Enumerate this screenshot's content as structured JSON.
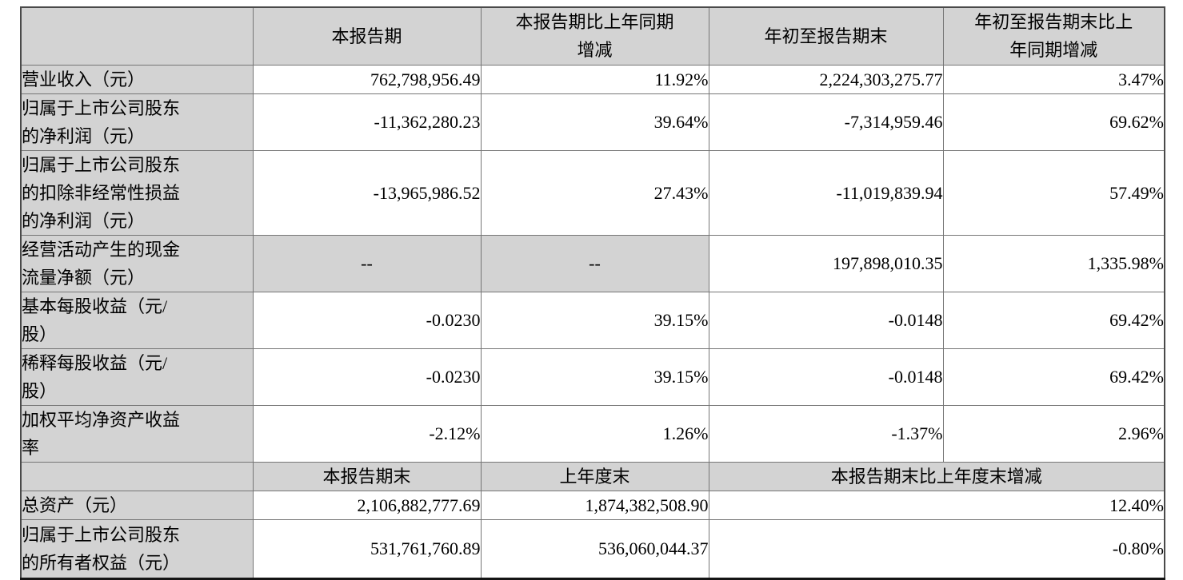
{
  "table": {
    "header1": {
      "corner": "",
      "current_period": "本报告期",
      "yoy_change": "本报告期比上年同期\n增减",
      "ytd": "年初至报告期末",
      "ytd_yoy_change": "年初至报告期末比上\n年同期增减"
    },
    "rows": [
      {
        "label": "营业收入（元）",
        "current": "762,798,956.49",
        "yoy": "11.92%",
        "ytd": "2,224,303,275.77",
        "ytd_yoy": "3.47%"
      },
      {
        "label": "归属于上市公司股东\n的净利润（元）",
        "current": "-11,362,280.23",
        "yoy": "39.64%",
        "ytd": "-7,314,959.46",
        "ytd_yoy": "69.62%"
      },
      {
        "label": "归属于上市公司股东\n的扣除非经常性损益\n的净利润（元）",
        "current": "-13,965,986.52",
        "yoy": "27.43%",
        "ytd": "-11,019,839.94",
        "ytd_yoy": "57.49%"
      },
      {
        "label": "经营活动产生的现金\n流量净额（元）",
        "current": "--",
        "yoy": "--",
        "ytd": "197,898,010.35",
        "ytd_yoy": "1,335.98%"
      },
      {
        "label": "基本每股收益（元/\n股）",
        "current": "-0.0230",
        "yoy": "39.15%",
        "ytd": "-0.0148",
        "ytd_yoy": "69.42%"
      },
      {
        "label": "稀释每股收益（元/\n股）",
        "current": "-0.0230",
        "yoy": "39.15%",
        "ytd": "-0.0148",
        "ytd_yoy": "69.42%"
      },
      {
        "label": "加权平均净资产收益\n率",
        "current": "-2.12%",
        "yoy": "1.26%",
        "ytd": "-1.37%",
        "ytd_yoy": "2.96%"
      }
    ],
    "header2": {
      "corner": "",
      "period_end": "本报告期末",
      "prior_year_end": "上年度末",
      "end_vs_prior_change": "本报告期末比上年度末增减"
    },
    "rows2": [
      {
        "label": "总资产（元）",
        "period_end": "2,106,882,777.69",
        "prior_year_end": "1,874,382,508.90",
        "change": "12.40%"
      },
      {
        "label": "归属于上市公司股东\n的所有者权益（元）",
        "period_end": "531,761,760.89",
        "prior_year_end": "536,060,044.37",
        "change": "-0.80%"
      }
    ]
  },
  "colors": {
    "header_fill": "#d3d3d3",
    "grid_line": "#767676",
    "outer_border": "#4a4a4a",
    "bottom_border": "#151515",
    "text": "#000000"
  }
}
